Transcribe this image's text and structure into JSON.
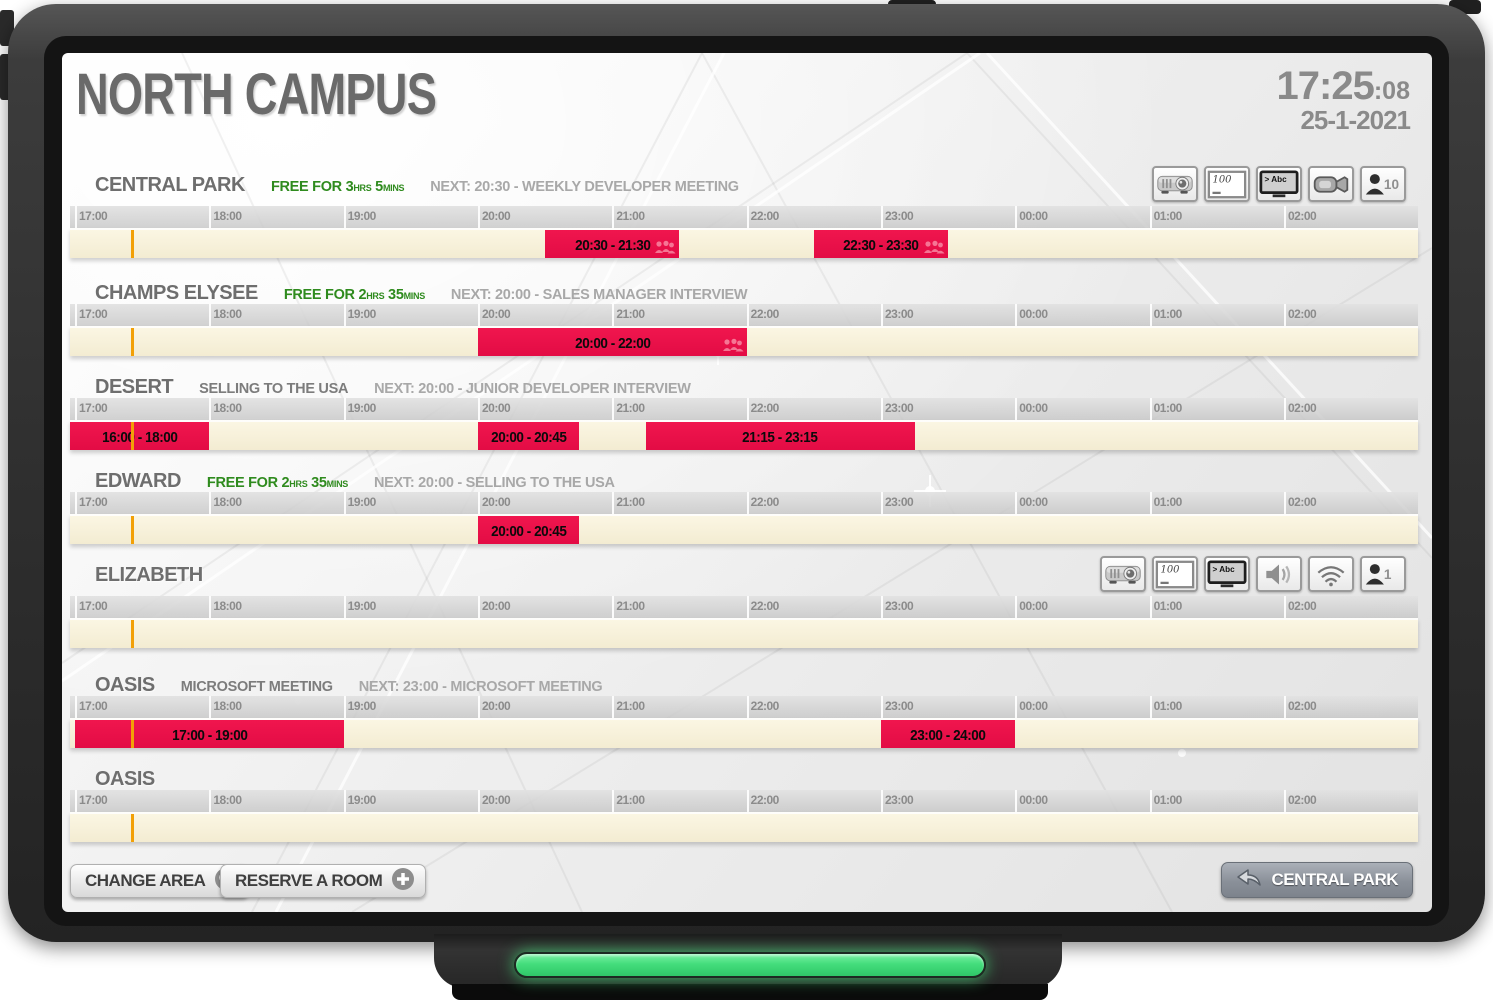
{
  "header": {
    "title": "NORTH CAMPUS",
    "clock_time": "17:25",
    "clock_seconds": ":08",
    "date": "25-1-2021"
  },
  "timeline": {
    "hours": [
      "17:00",
      "18:00",
      "19:00",
      "20:00",
      "21:00",
      "22:00",
      "23:00",
      "00:00",
      "01:00",
      "02:00"
    ],
    "now": "17:25"
  },
  "labels": {
    "free_prefix": "FREE FOR",
    "hours_unit": "HRS",
    "minutes_unit": "MINS"
  },
  "rooms": [
    {
      "name": "CENTRAL PARK",
      "free": {
        "hours": "3",
        "minutes": "5"
      },
      "next": "NEXT: 20:30 - WEEKLY DEVELOPER MEETING",
      "equipment": [
        {
          "type": "projector"
        },
        {
          "type": "whiteboard",
          "label": "100"
        },
        {
          "type": "display",
          "label": "> Abc"
        },
        {
          "type": "camera"
        },
        {
          "type": "person",
          "label": "10"
        }
      ],
      "bookings": [
        {
          "label": "20:30 - 21:30",
          "start": "20:30",
          "end": "21:30",
          "attendees": true
        },
        {
          "label": "22:30 - 23:30",
          "start": "22:30",
          "end": "23:30",
          "attendees": true
        }
      ]
    },
    {
      "name": "CHAMPS ELYSEE",
      "free": {
        "hours": "2",
        "minutes": "35"
      },
      "next": "NEXT: 20:00 - SALES MANAGER INTERVIEW",
      "equipment": [],
      "bookings": [
        {
          "label": "20:00 - 22:00",
          "start": "20:00",
          "end": "22:00",
          "attendees": true
        }
      ]
    },
    {
      "name": "DESERT",
      "current": "SELLING TO THE USA",
      "next": "NEXT: 20:00 - JUNIOR DEVELOPER INTERVIEW",
      "equipment": [],
      "bookings": [
        {
          "label": "16:00 - 18:00",
          "start": "16:00",
          "end": "18:00"
        },
        {
          "label": "20:00 - 20:45",
          "start": "20:00",
          "end": "20:45"
        },
        {
          "label": "21:15 - 23:15",
          "start": "21:15",
          "end": "23:15"
        }
      ]
    },
    {
      "name": "EDWARD",
      "free": {
        "hours": "2",
        "minutes": "35"
      },
      "next": "NEXT: 20:00 - SELLING TO THE USA",
      "equipment": [],
      "bookings": [
        {
          "label": "20:00 - 20:45",
          "start": "20:00",
          "end": "20:45"
        }
      ]
    },
    {
      "name": "ELIZABETH",
      "equipment": [
        {
          "type": "projector"
        },
        {
          "type": "whiteboard",
          "label": "100"
        },
        {
          "type": "display",
          "label": "> Abc"
        },
        {
          "type": "speaker"
        },
        {
          "type": "wifi"
        },
        {
          "type": "person",
          "label": "1"
        }
      ],
      "bookings": []
    },
    {
      "name": "OASIS",
      "current": "MICROSOFT MEETING",
      "next": "NEXT: 23:00 - MICROSOFT MEETING",
      "equipment": [],
      "bookings": [
        {
          "label": "17:00 - 19:00",
          "start": "17:00",
          "end": "19:00"
        },
        {
          "label": "23:00 - 24:00",
          "start": "23:00",
          "end": "24:00"
        }
      ]
    },
    {
      "name": "OASIS",
      "equipment": [],
      "bookings": []
    }
  ],
  "footer": {
    "change_area": "CHANGE AREA",
    "reserve_room": "RESERVE A ROOM",
    "back_button": "CENTRAL PARK"
  },
  "colors": {
    "booking_red": "#e60e46",
    "now_line_orange": "#f2a007",
    "free_green": "#2f8b1e",
    "led_green": "#44dd7c"
  }
}
